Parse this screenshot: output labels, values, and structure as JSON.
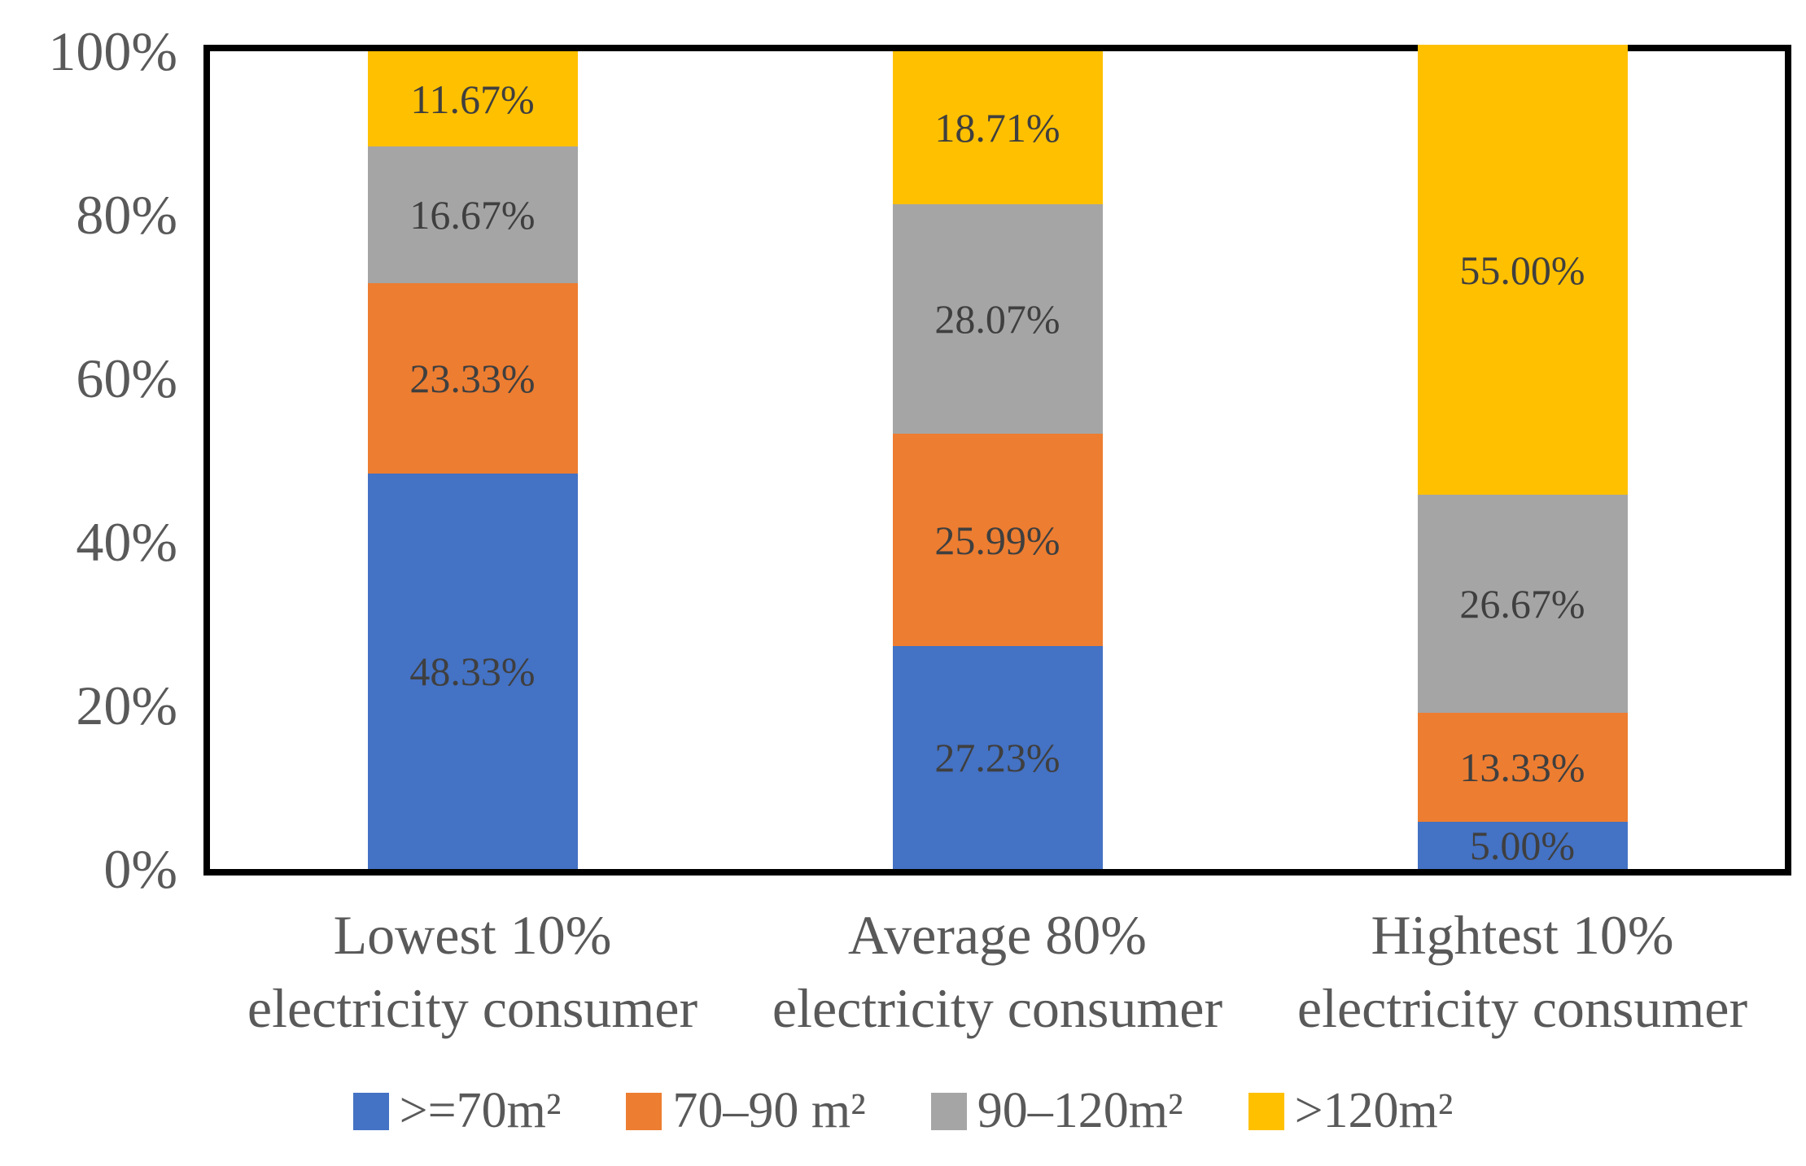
{
  "chart_data": {
    "type": "bar",
    "stacked": true,
    "percent_stacked": true,
    "title": "",
    "xlabel": "",
    "ylabel": "",
    "grid": false,
    "legend_position": "bottom",
    "y_axis": {
      "min": 0,
      "max": 100,
      "ticks": [
        "100%",
        "80%",
        "60%",
        "40%",
        "20%",
        "0%"
      ]
    },
    "categories": [
      {
        "lines": [
          "Lowest 10%",
          "electricity consumer"
        ]
      },
      {
        "lines": [
          "Average 80%",
          "electricity consumer"
        ]
      },
      {
        "lines": [
          "Hightest 10%",
          "electricity consumer"
        ]
      }
    ],
    "series": [
      {
        "name": ">=70m²",
        "color": "#4472C4",
        "values": [
          48.33,
          27.23,
          5.0
        ],
        "labels": [
          "48.33%",
          "27.23%",
          "5.00%"
        ]
      },
      {
        "name": "70–90 m²",
        "color": "#ED7D31",
        "values": [
          23.33,
          25.99,
          13.33
        ],
        "labels": [
          "23.33%",
          "25.99%",
          "13.33%"
        ]
      },
      {
        "name": "90–120m²",
        "color": "#A5A5A5",
        "values": [
          16.67,
          28.07,
          26.67
        ],
        "labels": [
          "16.67%",
          "28.07%",
          "26.67%"
        ]
      },
      {
        "name": ">120m²",
        "color": "#FFC000",
        "values": [
          11.67,
          18.71,
          55.0
        ],
        "labels": [
          "11.67%",
          "18.71%",
          "55.00%"
        ]
      }
    ],
    "colors": {
      "plot_border": "#000000",
      "background": "#FFFFFF",
      "axis_text": "#595959",
      "category_text": "#595959",
      "legend_text": "#595959",
      "data_label_text": "#3F3F3F"
    }
  }
}
